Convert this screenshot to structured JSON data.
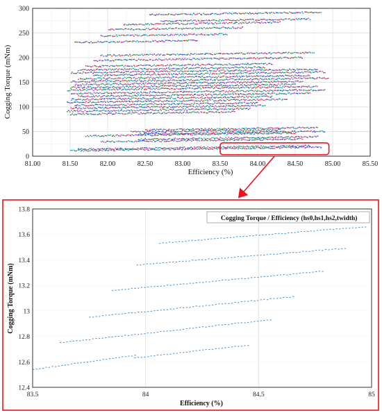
{
  "chart_data": [
    {
      "type": "scatter",
      "xlabel": "Efficiency (%)",
      "ylabel": "Cogging Torque (mNm)",
      "xlim": [
        81.0,
        85.5
      ],
      "ylim": [
        0,
        300
      ],
      "xticks": [
        "81.00",
        "81.50",
        "82.00",
        "82.50",
        "83.00",
        "83.50",
        "84.00",
        "84.50",
        "85.00",
        "85.50"
      ],
      "yticks": [
        "0",
        "50",
        "100",
        "150",
        "200",
        "250",
        "300"
      ],
      "grid": true,
      "series_colors": [
        "#e6323c",
        "#2a9d3a",
        "#2b4fd8",
        "#c040c0",
        "#18a8c8"
      ],
      "bands": [
        {
          "y": 288,
          "x": [
            82.55,
            84.85
          ]
        },
        {
          "y": 275,
          "x": [
            82.7,
            84.7
          ]
        },
        {
          "y": 268,
          "x": [
            82.2,
            84.3
          ]
        },
        {
          "y": 258,
          "x": [
            82.0,
            83.8
          ]
        },
        {
          "y": 245,
          "x": [
            81.9,
            83.6
          ]
        },
        {
          "y": 232,
          "x": [
            81.55,
            83.2
          ]
        },
        {
          "y": 205,
          "x": [
            81.9,
            84.75
          ]
        },
        {
          "y": 195,
          "x": [
            81.8,
            84.6
          ]
        },
        {
          "y": 183,
          "x": [
            81.7,
            84.2
          ]
        },
        {
          "y": 176,
          "x": [
            81.6,
            84.1
          ]
        },
        {
          "y": 170,
          "x": [
            81.5,
            84.8
          ]
        },
        {
          "y": 165,
          "x": [
            81.8,
            84.9
          ]
        },
        {
          "y": 158,
          "x": [
            81.6,
            84.7
          ]
        },
        {
          "y": 152,
          "x": [
            81.5,
            84.95
          ]
        },
        {
          "y": 146,
          "x": [
            81.55,
            84.6
          ]
        },
        {
          "y": 140,
          "x": [
            81.5,
            84.5
          ]
        },
        {
          "y": 135,
          "x": [
            81.45,
            84.8
          ]
        },
        {
          "y": 128,
          "x": [
            81.5,
            84.9
          ]
        },
        {
          "y": 122,
          "x": [
            81.6,
            84.7
          ]
        },
        {
          "y": 116,
          "x": [
            81.5,
            84.2
          ]
        },
        {
          "y": 110,
          "x": [
            81.45,
            84.4
          ]
        },
        {
          "y": 104,
          "x": [
            81.55,
            84.0
          ]
        },
        {
          "y": 98,
          "x": [
            81.5,
            84.1
          ]
        },
        {
          "y": 92,
          "x": [
            81.45,
            83.9
          ]
        },
        {
          "y": 86,
          "x": [
            81.5,
            83.7
          ]
        },
        {
          "y": 54,
          "x": [
            82.5,
            84.8
          ]
        },
        {
          "y": 50,
          "x": [
            82.3,
            84.3
          ]
        },
        {
          "y": 46,
          "x": [
            82.4,
            84.9
          ]
        },
        {
          "y": 42,
          "x": [
            81.7,
            84.5
          ]
        },
        {
          "y": 35,
          "x": [
            82.4,
            84.8
          ]
        },
        {
          "y": 30,
          "x": [
            81.9,
            84.6
          ]
        },
        {
          "y": 15,
          "x": [
            81.6,
            84.7
          ]
        },
        {
          "y": 12,
          "x": [
            81.5,
            84.85
          ]
        }
      ],
      "zoom_region": {
        "x": [
          83.5,
          84.95
        ],
        "y": [
          3,
          27
        ]
      }
    },
    {
      "type": "scatter",
      "title": "Cogging Torque / Efficiency (hs0,hs1,hs2,twidth)",
      "xlabel": "Efficiency (%)",
      "ylabel": "Cogging Torque (mNm)",
      "xlim": [
        83.5,
        85.0
      ],
      "ylim": [
        12.4,
        13.8
      ],
      "xticks": [
        "83.5",
        "84",
        "84.5",
        "85"
      ],
      "yticks": [
        "12.4",
        "12.6",
        "12.8",
        "13",
        "13.2",
        "13.4",
        "13.6",
        "13.8"
      ],
      "grid": true,
      "color": "#3a8fd6",
      "lines": [
        {
          "x": [
            83.5,
            83.95
          ],
          "y": [
            12.54,
            12.65
          ]
        },
        {
          "x": [
            83.95,
            84.45
          ],
          "y": [
            12.63,
            12.73
          ]
        },
        {
          "x": [
            83.62,
            84.55
          ],
          "y": [
            12.75,
            12.93
          ]
        },
        {
          "x": [
            83.75,
            84.65
          ],
          "y": [
            12.95,
            13.11
          ]
        },
        {
          "x": [
            83.85,
            84.78
          ],
          "y": [
            13.16,
            13.31
          ]
        },
        {
          "x": [
            83.96,
            84.88
          ],
          "y": [
            13.36,
            13.49
          ]
        },
        {
          "x": [
            84.06,
            84.97
          ],
          "y": [
            13.53,
            13.66
          ]
        }
      ]
    }
  ]
}
